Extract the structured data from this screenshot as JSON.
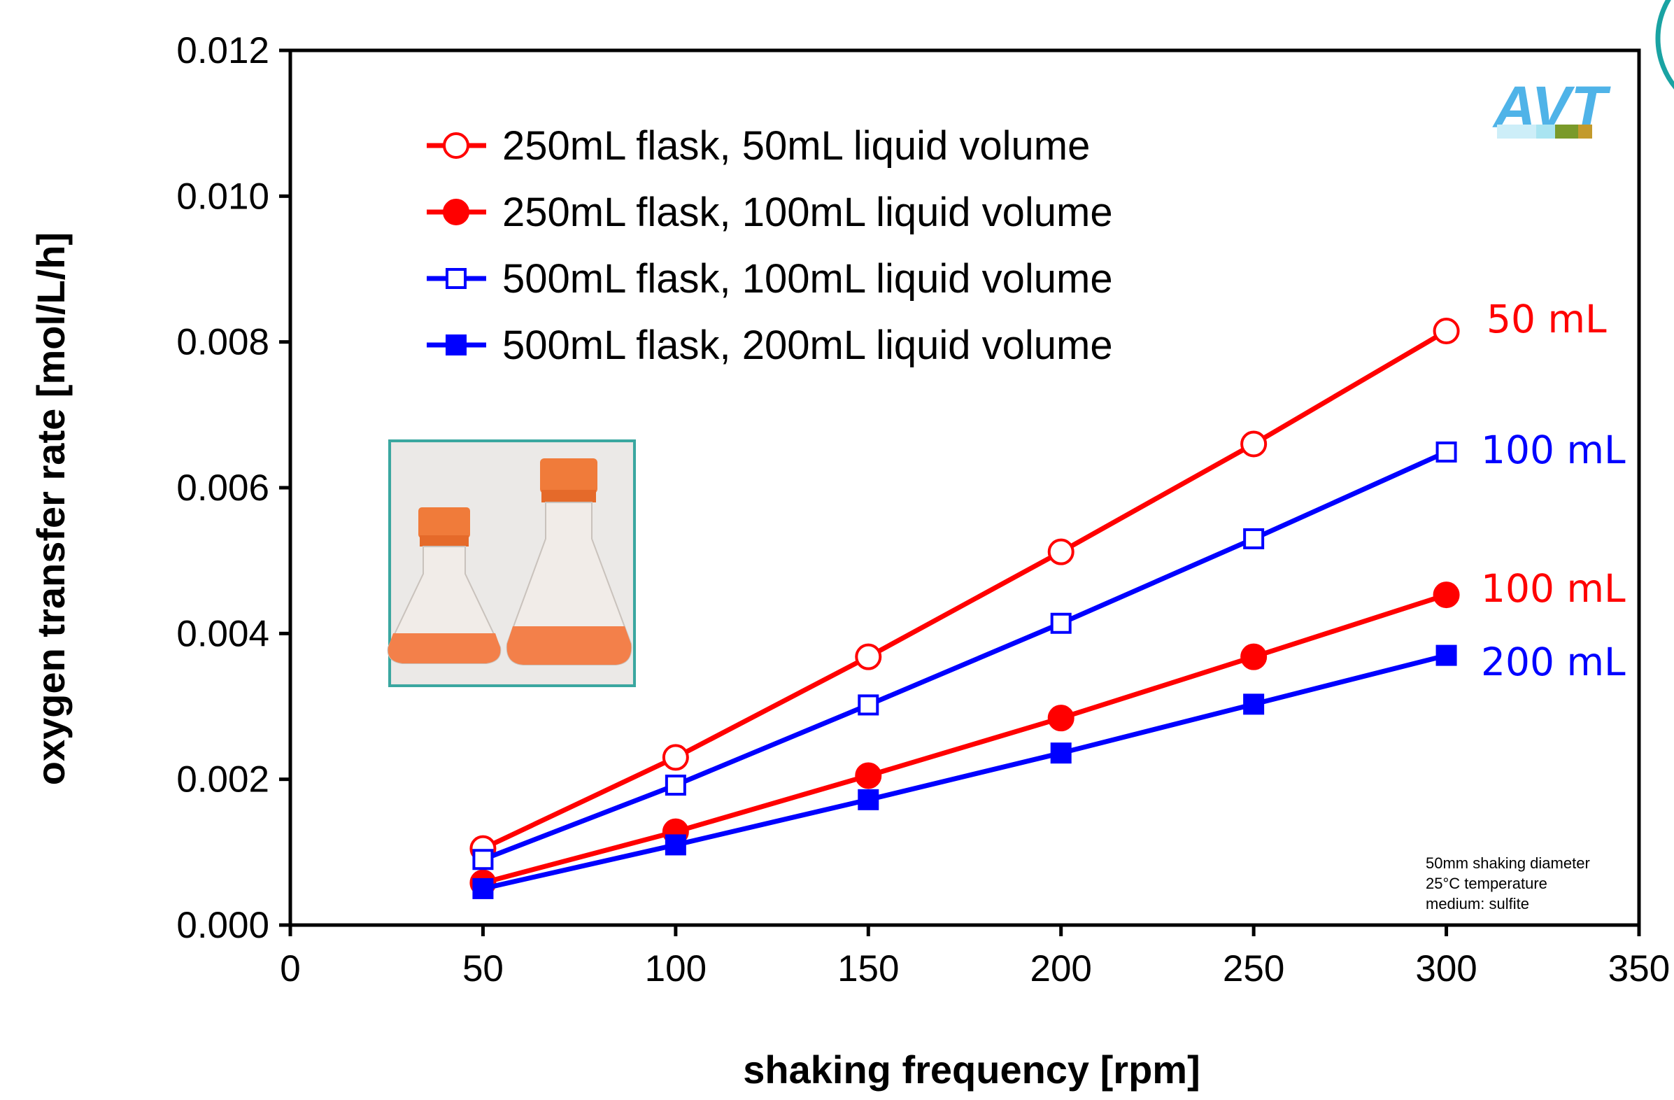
{
  "chart_data": {
    "type": "line",
    "xlabel": "shaking frequency  [rpm]",
    "ylabel": "oxygen transfer rate  [mol/L/h]",
    "xlim": [
      0,
      350
    ],
    "ylim": [
      0,
      0.012
    ],
    "xticks": [
      "0",
      "50",
      "100",
      "150",
      "200",
      "250",
      "300",
      "350"
    ],
    "yticks": [
      "0.000",
      "0.002",
      "0.004",
      "0.006",
      "0.008",
      "0.010",
      "0.012"
    ],
    "x": [
      50,
      100,
      150,
      200,
      250,
      300
    ],
    "grid": false,
    "legend_position": "top-left",
    "series": [
      {
        "name": "250mL flask, 50mL liquid volume",
        "color": "#ff0000",
        "marker": "circle-open",
        "values": [
          0.00105,
          0.0023,
          0.00368,
          0.00512,
          0.0066,
          0.00815
        ],
        "end_label": "50 mL"
      },
      {
        "name": "250mL flask, 100mL liquid volume",
        "color": "#ff0000",
        "marker": "circle-filled",
        "values": [
          0.00058,
          0.00128,
          0.00205,
          0.00284,
          0.00368,
          0.00453
        ],
        "end_label": "100 mL"
      },
      {
        "name": "500mL flask, 100mL liquid volume",
        "color": "#0000ff",
        "marker": "square-open",
        "values": [
          0.0009,
          0.00192,
          0.00302,
          0.00414,
          0.0053,
          0.00649
        ],
        "end_label": "100 mL"
      },
      {
        "name": "500mL flask, 200mL liquid volume",
        "color": "#0000ff",
        "marker": "square-filled",
        "values": [
          0.0005,
          0.0011,
          0.00172,
          0.00236,
          0.00303,
          0.0037
        ],
        "end_label": "200 mL"
      }
    ],
    "annotations": [
      "50mm shaking diameter",
      "25°C temperature",
      "medium: sulfite"
    ]
  },
  "logo": {
    "text": "AVT",
    "color": "#4fb3e8"
  },
  "photo": {
    "description_icon": "flasks-photo-icon",
    "border_color": "#3aa7a0"
  }
}
